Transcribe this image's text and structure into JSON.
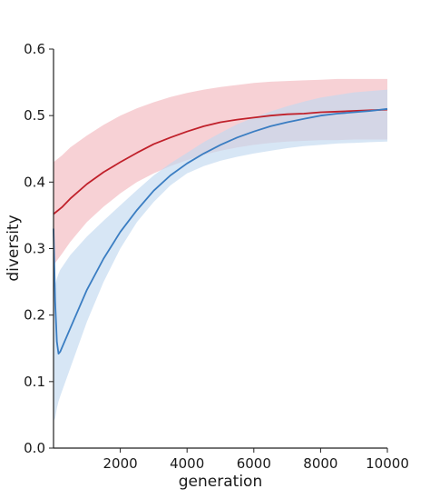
{
  "chart_data": {
    "type": "line",
    "title": "",
    "xlabel": "generation",
    "ylabel": "diversity",
    "xlim": [
      0,
      10000
    ],
    "ylim": [
      0.0,
      0.6
    ],
    "x_ticks": [
      2000,
      4000,
      6000,
      8000,
      10000
    ],
    "x_tick_labels": [
      "2000",
      "4000",
      "6000",
      "8000",
      "10000"
    ],
    "y_ticks": [
      0.0,
      0.1,
      0.2,
      0.3,
      0.4,
      0.5,
      0.6
    ],
    "y_tick_labels": [
      "0.0",
      "0.1",
      "0.2",
      "0.3",
      "0.4",
      "0.5",
      "0.6"
    ],
    "grid": false,
    "legend": "none",
    "series": [
      {
        "color": "#c0202a",
        "band_color": "#f2b8be",
        "x": [
          0,
          250,
          500,
          1000,
          1500,
          2000,
          2500,
          3000,
          3500,
          4000,
          4500,
          5000,
          5500,
          6000,
          6500,
          7000,
          7500,
          8000,
          8500,
          9000,
          9500,
          10000
        ],
        "y": [
          0.352,
          0.362,
          0.375,
          0.397,
          0.415,
          0.43,
          0.444,
          0.457,
          0.467,
          0.476,
          0.484,
          0.49,
          0.494,
          0.497,
          0.5,
          0.502,
          0.503,
          0.505,
          0.506,
          0.507,
          0.508,
          0.509
        ],
        "lower": [
          0.275,
          0.292,
          0.31,
          0.34,
          0.363,
          0.383,
          0.4,
          0.413,
          0.424,
          0.433,
          0.441,
          0.447,
          0.452,
          0.456,
          0.459,
          0.461,
          0.462,
          0.463,
          0.463,
          0.464,
          0.464,
          0.464
        ],
        "upper": [
          0.43,
          0.44,
          0.452,
          0.47,
          0.486,
          0.5,
          0.511,
          0.52,
          0.528,
          0.534,
          0.539,
          0.543,
          0.546,
          0.549,
          0.551,
          0.552,
          0.553,
          0.554,
          0.555,
          0.555,
          0.555,
          0.555
        ]
      },
      {
        "color": "#3a7dc2",
        "band_color": "#c2d8f0",
        "x": [
          0,
          50,
          100,
          150,
          200,
          500,
          1000,
          1500,
          2000,
          2500,
          3000,
          3500,
          4000,
          4500,
          5000,
          5500,
          6000,
          6500,
          7000,
          7500,
          8000,
          8500,
          9000,
          9500,
          10000
        ],
        "y": [
          0.33,
          0.22,
          0.16,
          0.142,
          0.145,
          0.18,
          0.238,
          0.285,
          0.325,
          0.358,
          0.387,
          0.41,
          0.428,
          0.443,
          0.456,
          0.467,
          0.476,
          0.484,
          0.49,
          0.495,
          0.5,
          0.503,
          0.505,
          0.507,
          0.51
        ],
        "lower": [
          0.04,
          0.045,
          0.06,
          0.07,
          0.078,
          0.12,
          0.19,
          0.25,
          0.3,
          0.34,
          0.37,
          0.395,
          0.413,
          0.424,
          0.432,
          0.438,
          0.443,
          0.447,
          0.451,
          0.454,
          0.456,
          0.458,
          0.459,
          0.46,
          0.461
        ],
        "upper": [
          0.24,
          0.245,
          0.255,
          0.262,
          0.268,
          0.29,
          0.318,
          0.342,
          0.365,
          0.388,
          0.41,
          0.428,
          0.444,
          0.46,
          0.474,
          0.487,
          0.497,
          0.506,
          0.514,
          0.521,
          0.527,
          0.531,
          0.535,
          0.537,
          0.539
        ]
      }
    ]
  }
}
